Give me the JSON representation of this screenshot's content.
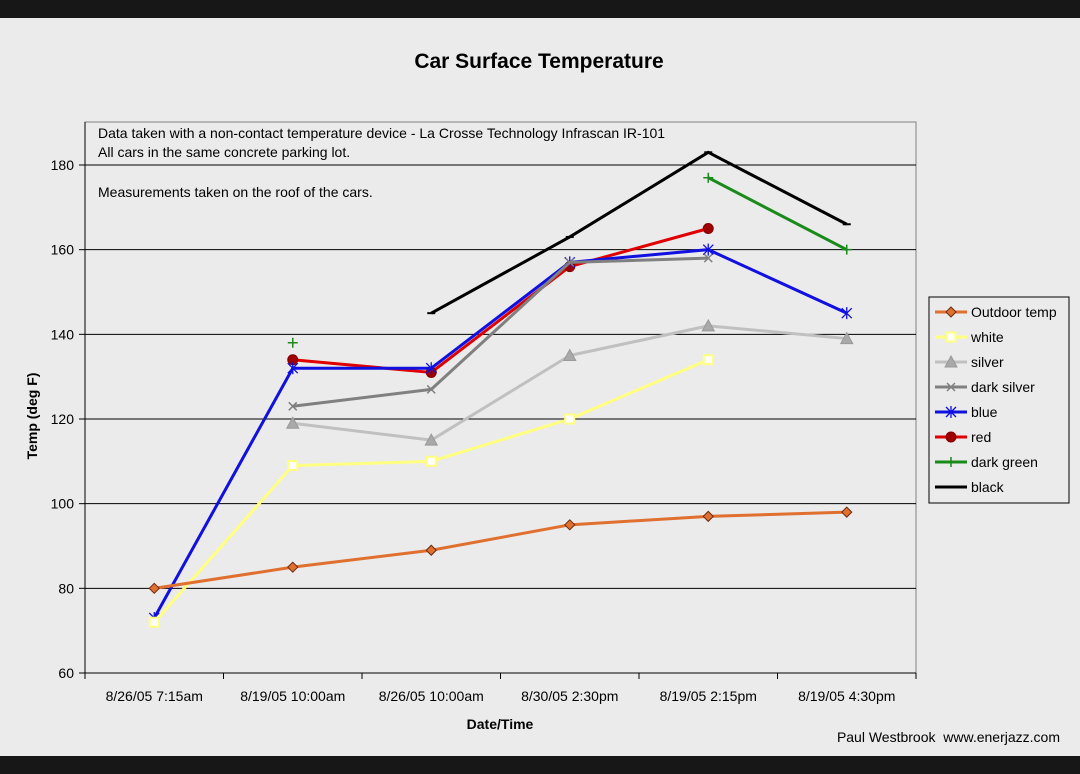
{
  "chart_data": {
    "type": "line",
    "title": "Car Surface Temperature",
    "xlabel": "Date/Time",
    "ylabel": "Temp (deg F)",
    "ylim": [
      60,
      190
    ],
    "yticks": [
      60,
      80,
      100,
      120,
      140,
      160,
      180
    ],
    "categories": [
      "8/26/05 7:15am",
      "8/19/05 10:00am",
      "8/26/05 10:00am",
      "8/30/05 2:30pm",
      "8/19/05 2:15pm",
      "8/19/05 4:30pm"
    ],
    "notes": [
      "Data taken with a non-contact temperature device - La Crosse Technology Infrascan IR-101",
      "All cars in the same concrete parking lot.",
      "Measurements taken on the roof of the cars."
    ],
    "credit": "Paul Westbrook  www.enerjazz.com",
    "series": [
      {
        "name": "Outdoor temp",
        "color": "#e07030",
        "marker": "diamond",
        "values": [
          80,
          85,
          89,
          95,
          97,
          98
        ]
      },
      {
        "name": "white",
        "color": "#ffff80",
        "marker": "square",
        "values": [
          72,
          109,
          110,
          120,
          134,
          null
        ]
      },
      {
        "name": "silver",
        "color": "#c0c0c0",
        "marker": "triangle",
        "values": [
          null,
          119,
          115,
          135,
          142,
          139
        ]
      },
      {
        "name": "dark silver",
        "color": "#808080",
        "marker": "x",
        "values": [
          null,
          123,
          127,
          157,
          158,
          null
        ]
      },
      {
        "name": "blue",
        "color": "#1010e0",
        "marker": "star",
        "values": [
          73,
          132,
          132,
          157,
          160,
          145
        ]
      },
      {
        "name": "red",
        "color": "#e00000",
        "marker": "circle",
        "values": [
          null,
          134,
          131,
          156,
          165,
          null
        ]
      },
      {
        "name": "dark green",
        "color": "#1a8a1a",
        "marker": "plus",
        "values": [
          null,
          138,
          null,
          null,
          177,
          160
        ]
      },
      {
        "name": "black",
        "color": "#000000",
        "marker": "none",
        "values": [
          null,
          null,
          145,
          163,
          183,
          166
        ]
      }
    ]
  }
}
